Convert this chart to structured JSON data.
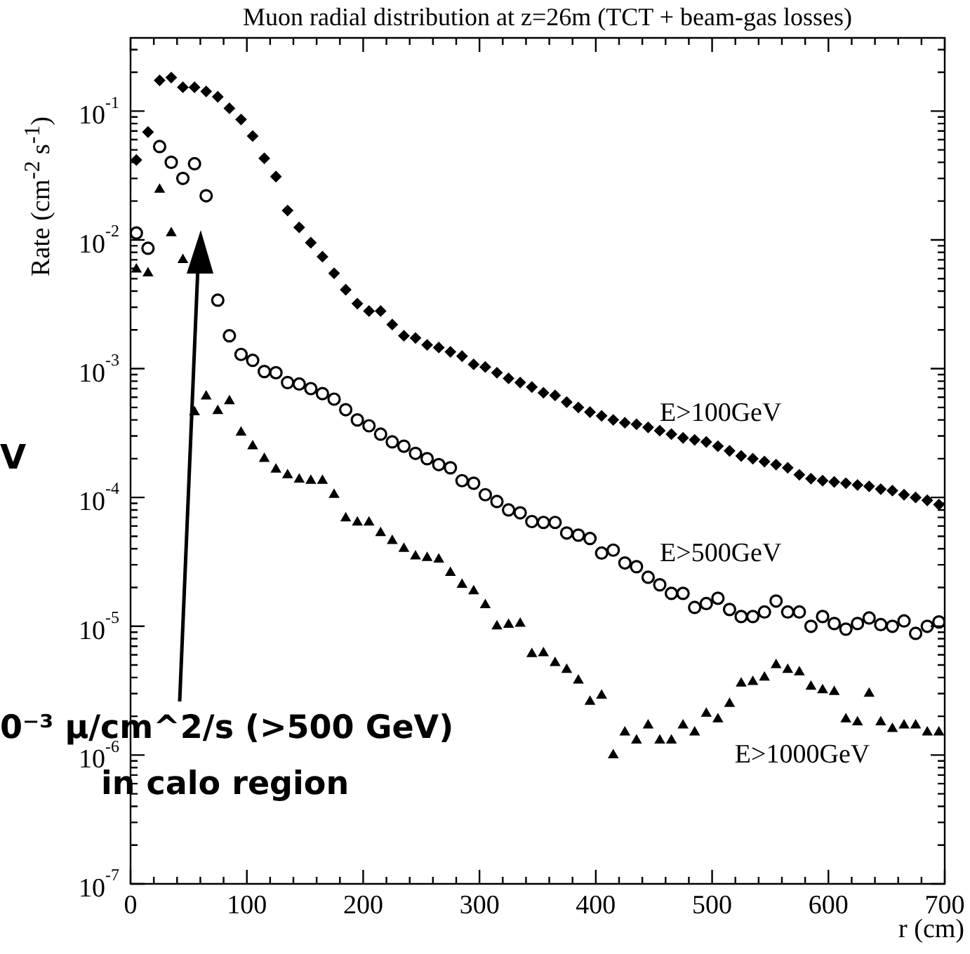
{
  "chart_data": {
    "type": "scatter",
    "title": "Muon radial distribution at z=26m (TCT + beam-gas losses)",
    "xlabel": "r (cm)",
    "ylabel": "Rate (cm$^{-2}$ s$^{-1}$)",
    "x": [
      5,
      15,
      25,
      35,
      45,
      55,
      65,
      75,
      85,
      95,
      105,
      115,
      125,
      135,
      145,
      155,
      165,
      175,
      185,
      195,
      205,
      215,
      225,
      235,
      245,
      255,
      265,
      275,
      285,
      295,
      305,
      315,
      325,
      335,
      345,
      355,
      365,
      375,
      385,
      395,
      405,
      415,
      425,
      435,
      445,
      455,
      465,
      475,
      485,
      495,
      505,
      515,
      525,
      535,
      545,
      555,
      565,
      575,
      585,
      595,
      605,
      615,
      625,
      635,
      645,
      655,
      665,
      675,
      685,
      695
    ],
    "series": [
      {
        "name": "E>100GeV",
        "color": "#000000",
        "marker": "diamond",
        "values": [
          0.0417,
          0.0687,
          0.173,
          0.182,
          0.153,
          0.153,
          0.142,
          0.129,
          0.105,
          0.086,
          0.064,
          0.043,
          0.031,
          0.0169,
          0.0125,
          0.0095,
          0.0074,
          0.0055,
          0.0041,
          0.0032,
          0.0028,
          0.0028,
          0.0022,
          0.0018,
          0.00173,
          0.00153,
          0.00146,
          0.00135,
          0.00125,
          0.00108,
          0.00103,
          0.00093,
          0.00084,
          0.00078,
          0.00072,
          0.00065,
          0.00062,
          0.00055,
          0.0005,
          0.00046,
          0.00043,
          0.0004,
          0.00038,
          0.00037,
          0.00035,
          0.00033,
          0.00031,
          0.00029,
          0.00028,
          0.00027,
          0.00025,
          0.00023,
          0.00021,
          0.0002,
          0.00019,
          0.00018,
          0.00017,
          0.00015,
          0.00014,
          0.000135,
          0.000132,
          0.000129,
          0.000125,
          0.000122,
          0.000116,
          0.000113,
          0.000105,
          0.0001,
          9.5e-05,
          8.8e-05
        ]
      },
      {
        "name": "E>500GeV",
        "color": "#000000",
        "marker": "circle",
        "values": [
          0.0113,
          0.0086,
          0.053,
          0.04,
          0.03,
          0.039,
          0.022,
          0.0034,
          0.0018,
          0.00129,
          0.00116,
          0.00095,
          0.00093,
          0.00078,
          0.00076,
          0.0007,
          0.00064,
          0.00058,
          0.00048,
          0.0004,
          0.00036,
          0.00031,
          0.00027,
          0.00025,
          0.00022,
          0.0002,
          0.00018,
          0.00017,
          0.000135,
          0.000129,
          0.000105,
          9.3e-05,
          8e-05,
          7.6e-05,
          6.5e-05,
          6.4e-05,
          6.4e-05,
          5.3e-05,
          5.1e-05,
          4.8e-05,
          3.7e-05,
          3.9e-05,
          3.1e-05,
          2.9e-05,
          2.4e-05,
          2.1e-05,
          1.8e-05,
          1.8e-05,
          1.4e-05,
          1.5e-05,
          1.65e-05,
          1.35e-05,
          1.19e-05,
          1.19e-05,
          1.29e-05,
          1.57e-05,
          1.29e-05,
          1.29e-05,
          1e-05,
          1.19e-05,
          1.05e-05,
          9.5e-06,
          1.05e-05,
          1.16e-05,
          1.03e-05,
          1e-05,
          1.1e-05,
          8.8e-06,
          1e-05,
          1.08e-05
        ]
      },
      {
        "name": "E>1000GeV",
        "color": "#000000",
        "marker": "triangle",
        "values": [
          0.0059,
          0.0055,
          0.0246,
          0.0113,
          0.007,
          0.00046,
          0.00061,
          0.00047,
          0.00056,
          0.00032,
          0.00025,
          0.0002,
          0.000165,
          0.000149,
          0.000138,
          0.000135,
          0.000135,
          0.000105,
          6.9e-05,
          6.4e-05,
          6.4e-05,
          5.3e-05,
          4.6e-05,
          4e-05,
          3.5e-05,
          3.4e-05,
          3.3e-05,
          2.6e-05,
          2.1e-05,
          1.87e-05,
          1.46e-05,
          1e-05,
          1.03e-05,
          1.05e-05,
          6.1e-06,
          6.2e-06,
          5.2e-06,
          4.6e-06,
          3.8e-06,
          2.6e-06,
          2.9e-06,
          1e-06,
          1.5e-06,
          1.3e-06,
          1.7e-06,
          1.3e-06,
          1.3e-06,
          1.7e-06,
          1.5e-06,
          2.1e-06,
          1.9e-06,
          2.5e-06,
          3.6e-06,
          3.7e-06,
          4e-06,
          5e-06,
          4.6e-06,
          4.4e-06,
          3.4e-06,
          3.2e-06,
          3.1e-06,
          1.9e-06,
          1.8e-06,
          3e-06,
          1.8e-06,
          1.6e-06,
          1.7e-06,
          1.7e-06,
          1.5e-06,
          1.5e-06
        ]
      }
    ],
    "log": "y",
    "xlim": [
      0,
      700
    ],
    "xticks": [
      0,
      100,
      200,
      300,
      400,
      500,
      600,
      700
    ],
    "ylim": [
      1e-07,
      0.37
    ],
    "yticks": [
      {
        "value": 1e-07,
        "label": "10$^{-7}$"
      },
      {
        "value": 1e-06,
        "label": "10$^{-6}$"
      },
      {
        "value": 1e-05,
        "label": "10$^{-5}$"
      },
      {
        "value": 0.0001,
        "label": "10$^{-4}$"
      },
      {
        "value": 0.001,
        "label": "10$^{-3}$"
      },
      {
        "value": 0.01,
        "label": "10$^{-2}$"
      },
      {
        "value": 0.1,
        "label": "10$^{-1}$"
      }
    ],
    "grid": false,
    "annotations": [
      "V",
      "0⁻³ μ/cm^2/s (>500 GeV)",
      "in calo region"
    ]
  }
}
